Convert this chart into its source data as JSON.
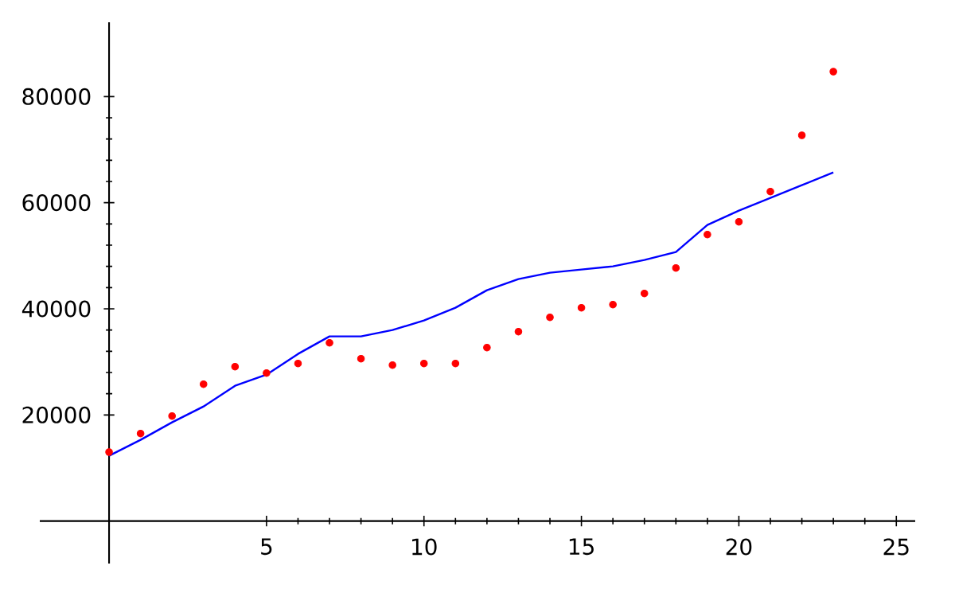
{
  "chart_data": {
    "type": "scatter",
    "x": [
      0,
      1,
      2,
      3,
      4,
      5,
      6,
      7,
      8,
      9,
      10,
      11,
      12,
      13,
      14,
      15,
      16,
      17,
      18,
      19,
      20,
      21,
      22,
      23
    ],
    "series": [
      {
        "color": "#ff0000",
        "marker": "circle",
        "values": [
          13000,
          16500,
          19800,
          25800,
          29100,
          27900,
          29700,
          33600,
          30600,
          29400,
          29700,
          29700,
          32700,
          35700,
          38400,
          40200,
          40800,
          42900,
          47700,
          54000,
          56400,
          62100,
          72700,
          84700
        ]
      },
      {
        "type": "line",
        "color": "#0000ff",
        "marker": "none",
        "line_style": "solid",
        "values": [
          12300,
          15300,
          18600,
          21600,
          25500,
          27600,
          31500,
          34800,
          34800,
          36000,
          37800,
          40200,
          43500,
          45600,
          46800,
          47400,
          48000,
          49200,
          50700,
          55800,
          58500,
          60900,
          63300,
          65700
        ]
      }
    ],
    "xlim": [
      -2.2,
      25.6
    ],
    "ylim": [
      -8000,
      94000
    ],
    "xticks": [
      5,
      10,
      15,
      20,
      25
    ],
    "yticks": [
      20000,
      40000,
      60000,
      80000
    ],
    "grid": false
  }
}
